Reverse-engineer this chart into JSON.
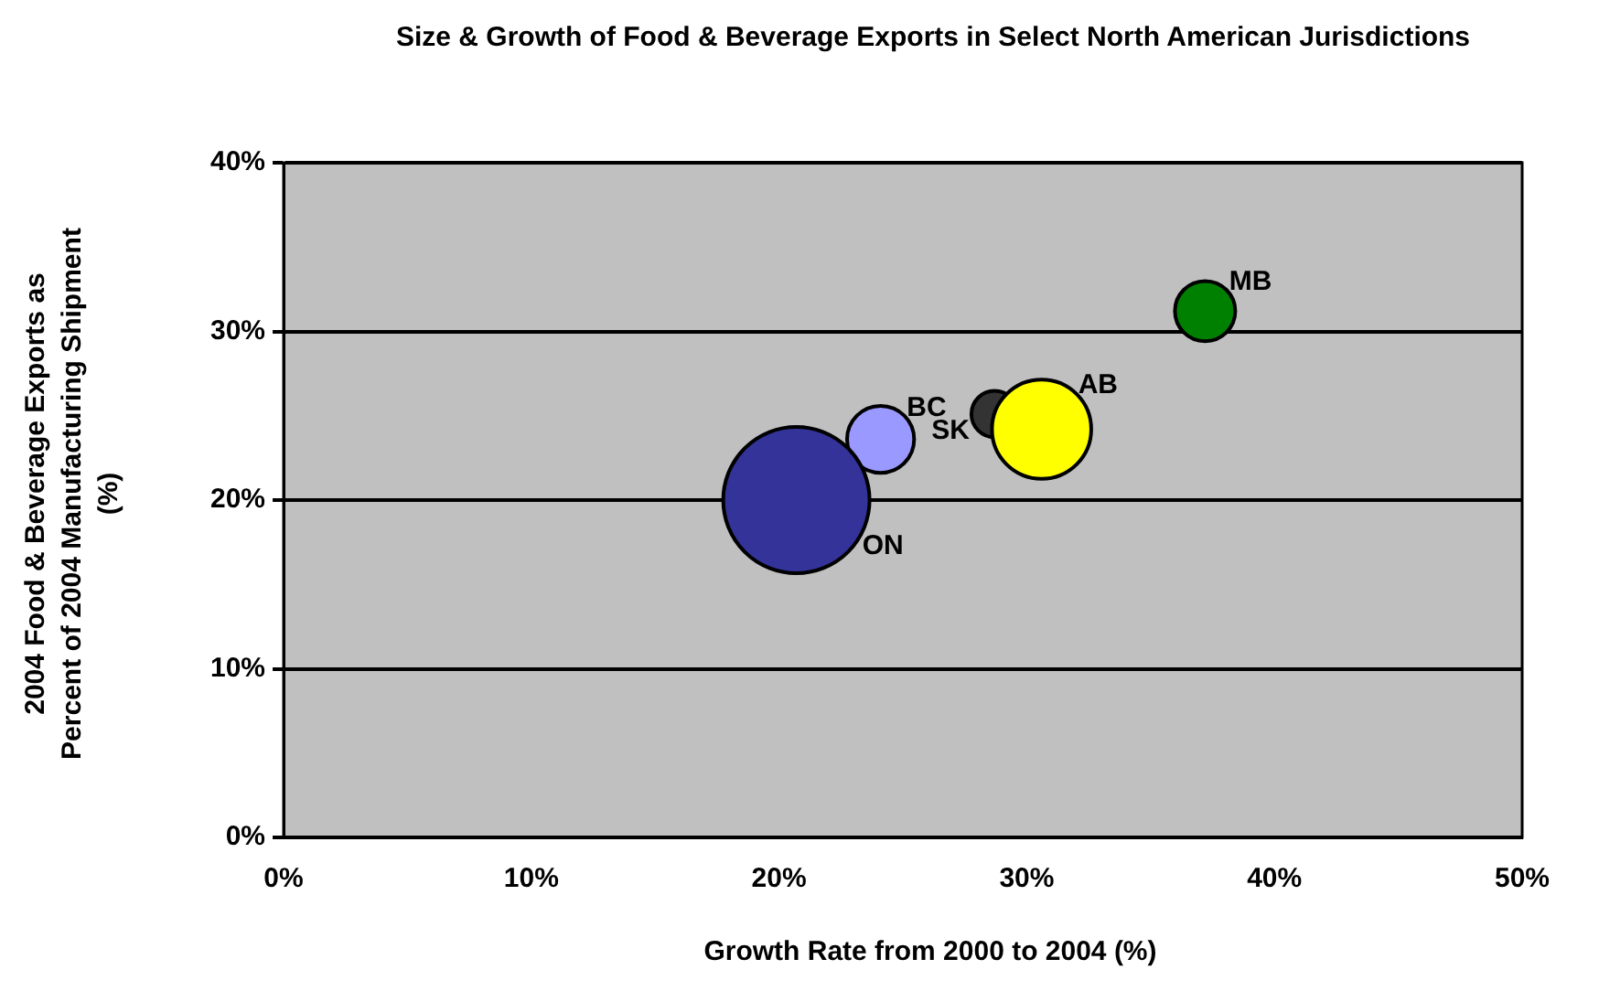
{
  "chart_data": {
    "type": "bubble",
    "title": "Size & Growth of Food & Beverage Exports in Select North American Jurisdictions",
    "xlabel": "Growth Rate from 2000 to 2004 (%)",
    "ylabel": "2004 Food & Beverage Exports as Percent of 2004 Manufacturing Shipment (%)",
    "xlim": [
      0,
      50
    ],
    "xticks": [
      {
        "value": 0,
        "label": "0%"
      },
      {
        "value": 10,
        "label": "10%"
      },
      {
        "value": 20,
        "label": "20%"
      },
      {
        "value": 30,
        "label": "30%"
      },
      {
        "value": 40,
        "label": "40%"
      },
      {
        "value": 50,
        "label": "50%"
      }
    ],
    "ylim": [
      0,
      40
    ],
    "yticks": [
      {
        "value": 0,
        "label": "0%"
      },
      {
        "value": 10,
        "label": "10%"
      },
      {
        "value": 20,
        "label": "20%"
      },
      {
        "value": 30,
        "label": "30%"
      },
      {
        "value": 40,
        "label": "40%"
      }
    ],
    "grid": "y",
    "legend": false,
    "series": [
      {
        "name": "ON",
        "color": "#333399",
        "x": [
          20.7
        ],
        "values": [
          20.0
        ],
        "sizes": [
          1
        ]
      },
      {
        "name": "BC",
        "color": "#9999ff",
        "x": [
          24.1
        ],
        "values": [
          23.6
        ],
        "sizes": [
          0.21
        ]
      },
      {
        "name": "AB",
        "color": "#ffff00",
        "x": [
          30.6
        ],
        "values": [
          24.2
        ],
        "sizes": [
          0.46
        ]
      },
      {
        "name": "SK",
        "color": "#333333",
        "x": [
          28.7
        ],
        "values": [
          25.1
        ],
        "sizes": [
          0.1
        ]
      },
      {
        "name": "MB",
        "color": "#008000",
        "x": [
          37.2
        ],
        "values": [
          31.2
        ],
        "sizes": [
          0.17
        ]
      }
    ]
  }
}
